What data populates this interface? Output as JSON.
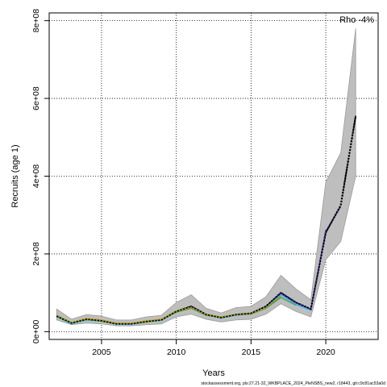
{
  "chart_data": {
    "type": "line",
    "xlabel": "Years",
    "ylabel": "Recruits (age 1)",
    "annotation": "Rho -4%",
    "footer": "stockassessment.org, pls:27.21-32_WKBPLACE_2024_PleNSBS_new2, r18443, git:c9c81ac53a0d",
    "xlim": [
      2001.5,
      2023.5
    ],
    "ylim": [
      -20000000,
      820000000
    ],
    "x_ticks": [
      2005,
      2010,
      2015,
      2020
    ],
    "x_tick_labels": [
      "2005",
      "2010",
      "2015",
      "2020"
    ],
    "y_ticks": [
      0,
      200000000,
      400000000,
      600000000,
      800000000
    ],
    "y_tick_labels": [
      "0e+00",
      "2e+08",
      "4e+08",
      "6e+08",
      "8e+08"
    ],
    "grid": true,
    "colors": {
      "band": "#bebebe",
      "band_edge": "#9a9a9a",
      "grid": "#000000",
      "retro_navy": "#1a237e",
      "retro_purple": "#5e35b1",
      "retro_cyan": "#29b6f6",
      "retro_green": "#43a047",
      "retro_olive": "#9e9d24",
      "retro_orange": "#c0a020"
    },
    "band": {
      "x": [
        2002,
        2003,
        2004,
        2005,
        2006,
        2007,
        2008,
        2009,
        2010,
        2011,
        2012,
        2013,
        2014,
        2015,
        2016,
        2017,
        2018,
        2019,
        2020,
        2021,
        2022
      ],
      "lower": [
        30000000,
        18000000,
        22000000,
        20000000,
        15000000,
        15000000,
        18000000,
        20000000,
        38000000,
        45000000,
        32000000,
        25000000,
        30000000,
        32000000,
        45000000,
        72000000,
        52000000,
        38000000,
        185000000,
        232000000,
        400000000
      ],
      "upper": [
        58000000,
        32000000,
        44000000,
        40000000,
        30000000,
        30000000,
        38000000,
        42000000,
        75000000,
        95000000,
        60000000,
        48000000,
        62000000,
        65000000,
        90000000,
        145000000,
        110000000,
        82000000,
        385000000,
        460000000,
        780000000
      ]
    },
    "series": [
      {
        "x": [
          2002,
          2003,
          2004,
          2005,
          2006,
          2007,
          2008,
          2009,
          2010,
          2011,
          2012,
          2013,
          2014,
          2015,
          2016,
          2017,
          2018,
          2019,
          2020,
          2021,
          2022
        ],
        "values": [
          40000000,
          22000000,
          32000000,
          28000000,
          20000000,
          20000000,
          26000000,
          30000000,
          52000000,
          65000000,
          44000000,
          36000000,
          44000000,
          47000000,
          65000000,
          100000000,
          75000000,
          58000000,
          255000000,
          325000000,
          555000000
        ],
        "color": "#000000",
        "dashed": true
      },
      {
        "x": [
          2002,
          2003,
          2004,
          2005,
          2006,
          2007,
          2008,
          2009,
          2010,
          2011,
          2012,
          2013,
          2014,
          2015,
          2016,
          2017,
          2018,
          2019,
          2020,
          2021
        ],
        "values": [
          40000000,
          22000000,
          32000000,
          28000000,
          20000000,
          20000000,
          26000000,
          30000000,
          52000000,
          65000000,
          44000000,
          36000000,
          44000000,
          47000000,
          65000000,
          100000000,
          75000000,
          58000000,
          258000000,
          322000000
        ],
        "color": "#1a237e"
      },
      {
        "x": [
          2002,
          2003,
          2004,
          2005,
          2006,
          2007,
          2008,
          2009,
          2010,
          2011,
          2012,
          2013,
          2014,
          2015,
          2016,
          2017,
          2018,
          2019,
          2020
        ],
        "values": [
          40000000,
          21000000,
          31000000,
          28000000,
          20000000,
          20000000,
          26000000,
          30000000,
          51000000,
          64000000,
          43000000,
          35000000,
          43000000,
          46000000,
          64000000,
          98000000,
          74000000,
          57000000,
          262000000
        ],
        "color": "#5e35b1"
      },
      {
        "x": [
          2002,
          2003,
          2004,
          2005,
          2006,
          2007,
          2008,
          2009,
          2010,
          2011,
          2012,
          2013,
          2014,
          2015,
          2016,
          2017,
          2018,
          2019
        ],
        "values": [
          38000000,
          20000000,
          30000000,
          27000000,
          19000000,
          19000000,
          25000000,
          29000000,
          50000000,
          63000000,
          43000000,
          35000000,
          42000000,
          45000000,
          62000000,
          95000000,
          70000000,
          55000000
        ],
        "color": "#29b6f6"
      },
      {
        "x": [
          2002,
          2003,
          2004,
          2005,
          2006,
          2007,
          2008,
          2009,
          2010,
          2011,
          2012,
          2013,
          2014,
          2015,
          2016,
          2017,
          2018
        ],
        "values": [
          39000000,
          22000000,
          31000000,
          27000000,
          20000000,
          20000000,
          25000000,
          30000000,
          50000000,
          60000000,
          42000000,
          36000000,
          43000000,
          45000000,
          60000000,
          88000000,
          68000000
        ],
        "color": "#43a047"
      },
      {
        "x": [
          2002,
          2003,
          2004,
          2005,
          2006,
          2007,
          2008,
          2009,
          2010,
          2011,
          2012,
          2013,
          2014,
          2015,
          2016,
          2017
        ],
        "values": [
          41000000,
          23000000,
          33000000,
          29000000,
          21000000,
          21000000,
          27000000,
          31000000,
          53000000,
          62000000,
          44000000,
          37000000,
          44000000,
          46000000,
          62000000,
          92000000
        ],
        "color": "#9e9d24"
      },
      {
        "x": [
          2002,
          2003,
          2004,
          2005,
          2006,
          2007,
          2008,
          2009,
          2010,
          2011,
          2012,
          2013,
          2014,
          2015,
          2016
        ],
        "values": [
          42000000,
          24000000,
          34000000,
          30000000,
          22000000,
          22000000,
          28000000,
          32000000,
          54000000,
          63000000,
          45000000,
          38000000,
          45000000,
          47000000,
          63000000
        ],
        "color": "#c0a020"
      }
    ]
  }
}
